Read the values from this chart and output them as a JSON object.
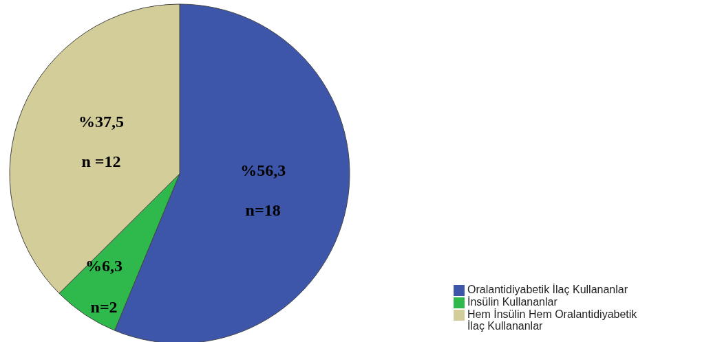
{
  "chart_data": {
    "type": "pie",
    "categories": [
      "Oralantidiyabetik İlaç Kullananlar",
      "İnsülin Kullananlar",
      "Hem İnsülin Hem Oralantidiyabetik İlaç Kullananlar"
    ],
    "values": [
      56.3,
      6.3,
      37.5
    ],
    "colors": [
      "#3d56a9",
      "#2fb84c",
      "#d3cd99"
    ],
    "value_labels": [
      "%56,3\nn=18",
      "%6,3\nn=2",
      "%37,5\nn =12"
    ],
    "legend": "bottom right"
  }
}
